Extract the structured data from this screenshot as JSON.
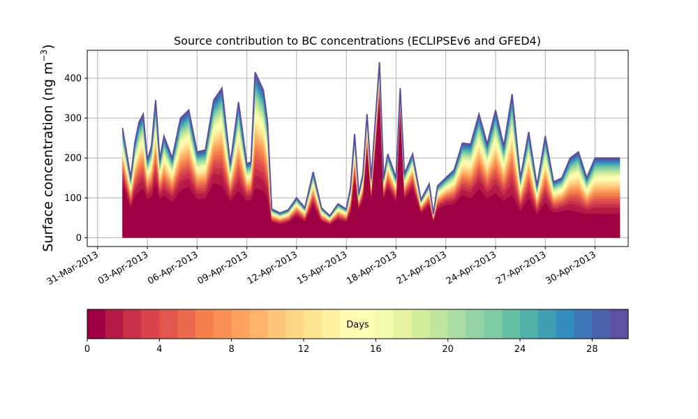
{
  "chart_data": {
    "type": "area",
    "title": "Source contribution to BC concentrations (ECLIPSEv6 and GFED4)",
    "ylabel": "Surface concentration (ng m",
    "ylabel_sup": "−3",
    "ylabel_close": ")",
    "xlabel": "",
    "ylim": [
      -22,
      470
    ],
    "yticks": [
      0,
      100,
      200,
      300,
      400
    ],
    "xlim": [
      "2013-03-30T09:00",
      "2013-05-02T00:00"
    ],
    "xticks": [
      "2013-03-31",
      "2013-04-03",
      "2013-04-06",
      "2013-04-09",
      "2013-04-12",
      "2013-04-15",
      "2013-04-18",
      "2013-04-21",
      "2013-04-24",
      "2013-04-27",
      "2013-04-30"
    ],
    "xtick_labels": [
      "31-Mar-2013",
      "03-Apr-2013",
      "06-Apr-2013",
      "09-Apr-2013",
      "12-Apr-2013",
      "15-Apr-2013",
      "18-Apr-2013",
      "21-Apr-2013",
      "24-Apr-2013",
      "27-Apr-2013",
      "30-Apr-2013"
    ],
    "grid": true,
    "x": [
      "2013-04-01T12:00",
      "2013-04-02T00:00",
      "2013-04-02T06:00",
      "2013-04-02T12:00",
      "2013-04-02T18:00",
      "2013-04-03T00:00",
      "2013-04-03T06:00",
      "2013-04-03T12:00",
      "2013-04-03T18:00",
      "2013-04-04T00:00",
      "2013-04-04T12:00",
      "2013-04-05T00:00",
      "2013-04-05T12:00",
      "2013-04-06T00:00",
      "2013-04-06T12:00",
      "2013-04-07T00:00",
      "2013-04-07T12:00",
      "2013-04-08T00:00",
      "2013-04-08T12:00",
      "2013-04-09T00:00",
      "2013-04-09T06:00",
      "2013-04-09T12:00",
      "2013-04-10T00:00",
      "2013-04-10T06:00",
      "2013-04-10T12:00",
      "2013-04-11T00:00",
      "2013-04-11T12:00",
      "2013-04-12T00:00",
      "2013-04-12T12:00",
      "2013-04-13T00:00",
      "2013-04-13T12:00",
      "2013-04-14T00:00",
      "2013-04-14T12:00",
      "2013-04-15T00:00",
      "2013-04-15T06:00",
      "2013-04-15T12:00",
      "2013-04-15T18:00",
      "2013-04-16T00:00",
      "2013-04-16T06:00",
      "2013-04-16T12:00",
      "2013-04-17T00:00",
      "2013-04-17T06:00",
      "2013-04-17T12:00",
      "2013-04-18T00:00",
      "2013-04-18T06:00",
      "2013-04-18T12:00",
      "2013-04-19T00:00",
      "2013-04-19T12:00",
      "2013-04-20T00:00",
      "2013-04-20T06:00",
      "2013-04-20T12:00",
      "2013-04-21T00:00",
      "2013-04-21T12:00",
      "2013-04-22T00:00",
      "2013-04-22T12:00",
      "2013-04-23T00:00",
      "2013-04-23T12:00",
      "2013-04-24T00:00",
      "2013-04-24T12:00",
      "2013-04-25T00:00",
      "2013-04-25T12:00",
      "2013-04-26T00:00",
      "2013-04-26T12:00",
      "2013-04-27T00:00",
      "2013-04-27T12:00",
      "2013-04-28T00:00",
      "2013-04-28T12:00",
      "2013-04-29T00:00",
      "2013-04-29T12:00",
      "2013-04-30T00:00",
      "2013-04-30T12:00",
      "2013-05-01T00:00",
      "2013-05-01T12:00"
    ],
    "total": [
      275,
      150,
      240,
      290,
      310,
      195,
      230,
      345,
      195,
      255,
      200,
      300,
      320,
      215,
      220,
      345,
      375,
      185,
      340,
      185,
      190,
      415,
      370,
      290,
      72,
      62,
      70,
      100,
      75,
      165,
      75,
      55,
      85,
      72,
      125,
      260,
      110,
      160,
      310,
      148,
      440,
      150,
      210,
      150,
      375,
      160,
      210,
      95,
      135,
      60,
      130,
      150,
      170,
      237,
      235,
      310,
      235,
      320,
      230,
      360,
      150,
      265,
      130,
      255,
      140,
      150,
      200,
      215,
      150,
      200,
      200,
      200,
      200
    ],
    "base_fraction": [
      0.5,
      0.5,
      0.45,
      0.4,
      0.4,
      0.5,
      0.45,
      0.4,
      0.5,
      0.42,
      0.45,
      0.4,
      0.4,
      0.45,
      0.45,
      0.4,
      0.35,
      0.5,
      0.35,
      0.5,
      0.5,
      0.3,
      0.32,
      0.35,
      0.55,
      0.55,
      0.55,
      0.55,
      0.55,
      0.5,
      0.55,
      0.6,
      0.55,
      0.55,
      0.5,
      0.55,
      0.65,
      0.6,
      0.7,
      0.65,
      0.8,
      0.65,
      0.6,
      0.6,
      0.85,
      0.6,
      0.6,
      0.65,
      0.6,
      0.7,
      0.55,
      0.55,
      0.5,
      0.45,
      0.42,
      0.4,
      0.42,
      0.35,
      0.4,
      0.3,
      0.45,
      0.38,
      0.45,
      0.35,
      0.45,
      0.45,
      0.35,
      0.3,
      0.4,
      0.3,
      0.3,
      0.3,
      0.3
    ],
    "series_note_days": 30,
    "colorbar": {
      "label": "Days",
      "ticks": [
        0,
        4,
        8,
        12,
        16,
        20,
        24,
        28
      ],
      "range": [
        0,
        30
      ],
      "colors": [
        "#9e0142",
        "#b41b47",
        "#c9304a",
        "#d8434d",
        "#e2574d",
        "#ea6b4c",
        "#f47f4b",
        "#f88f54",
        "#fba25f",
        "#fcb46a",
        "#fdc577",
        "#fed786",
        "#fee391",
        "#fef0a0",
        "#fff9b1",
        "#fbfeb3",
        "#f2faac",
        "#e6f59d",
        "#d3ee9b",
        "#c0e59d",
        "#abdda4",
        "#94d4a4",
        "#7ecba4",
        "#67bfa5",
        "#51b1a8",
        "#3f9fb3",
        "#338bbe",
        "#3e77b7",
        "#4c62ad",
        "#5e4fa2"
      ]
    }
  }
}
